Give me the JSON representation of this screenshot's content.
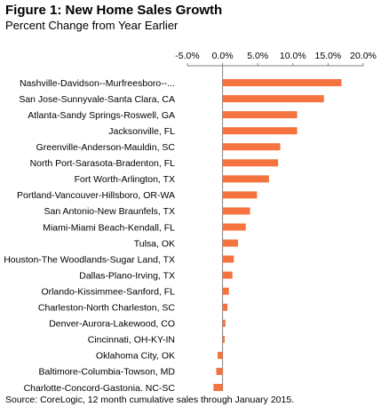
{
  "figure": {
    "title": "Figure 1: New Home Sales Growth",
    "subtitle": "Percent Change from Year Earlier",
    "footnote": "Source: CoreLogic, 12 month  cumulative sales through January 2015."
  },
  "chart_data": {
    "type": "bar",
    "orientation": "horizontal",
    "title": "Figure 1: New Home Sales Growth",
    "subtitle": "Percent Change from Year Earlier",
    "xlim": [
      -5,
      20
    ],
    "x_ticks": [
      -5,
      0,
      5,
      10,
      15,
      20
    ],
    "x_tick_labels": [
      "-5.0%",
      "0.0%",
      "5.0%",
      "10.0%",
      "15.0%",
      "20.0%"
    ],
    "axis_position": "top",
    "grid": false,
    "bar_color": "#f4733f",
    "categories": [
      "Nashville-Davidson--Murfreesboro--...",
      "San Jose-Sunnyvale-Santa Clara, CA",
      "Atlanta-Sandy Springs-Roswell, GA",
      "Jacksonville, FL",
      "Greenville-Anderson-Mauldin, SC",
      "North Port-Sarasota-Bradenton, FL",
      "Fort Worth-Arlington, TX",
      "Portland-Vancouver-Hillsboro, OR-WA",
      "San Antonio-New Braunfels, TX",
      "Miami-Miami Beach-Kendall, FL",
      "Tulsa, OK",
      "Houston-The Woodlands-Sugar Land, TX",
      "Dallas-Plano-Irving, TX",
      "Orlando-Kissimmee-Sanford, FL",
      "Charleston-North Charleston, SC",
      "Denver-Aurora-Lakewood, CO",
      "Cincinnati, OH-KY-IN",
      "Oklahoma City, OK",
      "Baltimore-Columbia-Towson, MD",
      "Charlotte-Concord-Gastonia, NC-SC"
    ],
    "values": [
      16.9,
      14.4,
      10.6,
      10.6,
      8.2,
      7.9,
      6.6,
      4.9,
      3.9,
      3.3,
      2.2,
      1.6,
      1.4,
      0.9,
      0.7,
      0.4,
      0.3,
      -0.7,
      -0.9,
      -1.3
    ]
  }
}
